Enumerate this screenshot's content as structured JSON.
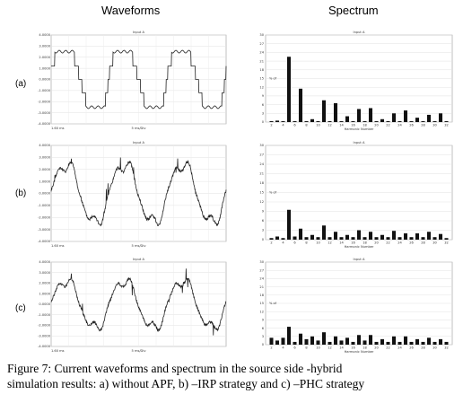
{
  "column_titles": {
    "waveforms": "Waveforms",
    "spectrum": "Spectrum"
  },
  "row_labels": [
    "(a)",
    "(b)",
    "(c)"
  ],
  "caption": {
    "line1": "Figure 7:  Current waveforms and spectrum in the source side -hybrid",
    "line2": "simulation results: a) without APF, b) –IRP strategy and c) –PHC strategy"
  },
  "chart_data": [
    {
      "type": "line",
      "panel": "a-waveform",
      "title": "Input A",
      "xlabel": "5 ms/Div",
      "x_start_label": "1.60 ms",
      "ylim": [
        -4,
        4
      ],
      "yticks": [
        "4.0000",
        "3.0000",
        "2.0000",
        "1.0000",
        "0.0000",
        "-1.0000",
        "-2.0000",
        "-3.0000",
        "-4.0000"
      ],
      "shape": "quasi-square",
      "cycles": 3,
      "amplitude": 2.5,
      "step_level": 1.2
    },
    {
      "type": "bar",
      "panel": "a-spectrum",
      "title": "Input A",
      "xlabel": "Harmonic Number",
      "ylabel": "% of",
      "ylim": [
        0,
        30
      ],
      "yticks": [
        "30",
        "27",
        "24",
        "21",
        "18",
        "15",
        "12",
        "9",
        "6",
        "3",
        "0"
      ],
      "categories": [
        2,
        3,
        4,
        5,
        6,
        7,
        8,
        9,
        10,
        11,
        12,
        13,
        14,
        15,
        16,
        17,
        18,
        19,
        20,
        21,
        22,
        23,
        24,
        25,
        26,
        27,
        28,
        29,
        30,
        31,
        32
      ],
      "xtick_labels": [
        "2",
        "4",
        "6",
        "8",
        "10",
        "12",
        "14",
        "16",
        "18",
        "20",
        "22",
        "24",
        "26",
        "28",
        "30",
        "32"
      ],
      "values": [
        0.3,
        0.5,
        0.3,
        22.5,
        0.3,
        11.5,
        0.3,
        1.0,
        0.3,
        7.5,
        0.3,
        6.5,
        0.3,
        2.0,
        0.3,
        4.5,
        0.3,
        4.8,
        0.3,
        1.0,
        0.3,
        3.0,
        0.3,
        4.0,
        0.3,
        1.5,
        0.3,
        2.5,
        0.3,
        3.0,
        0.3
      ]
    },
    {
      "type": "line",
      "panel": "b-waveform",
      "title": "Input A",
      "xlabel": "5 ms/Div",
      "x_start_label": "1.60 ms",
      "ylim": [
        -4,
        4
      ],
      "yticks": [
        "4.0000",
        "3.0000",
        "2.0000",
        "1.0000",
        "0.0000",
        "-1.0000",
        "-2.0000",
        "-3.0000",
        "-4.0000"
      ],
      "shape": "distorted-sine",
      "cycles": 3,
      "amplitude": 2.7
    },
    {
      "type": "bar",
      "panel": "b-spectrum",
      "title": "Input A",
      "xlabel": "Harmonic Number",
      "ylabel": "% of",
      "ylim": [
        0,
        30
      ],
      "yticks": [
        "30",
        "27",
        "24",
        "21",
        "18",
        "15",
        "12",
        "9",
        "6",
        "3",
        "0"
      ],
      "categories": [
        2,
        3,
        4,
        5,
        6,
        7,
        8,
        9,
        10,
        11,
        12,
        13,
        14,
        15,
        16,
        17,
        18,
        19,
        20,
        21,
        22,
        23,
        24,
        25,
        26,
        27,
        28,
        29,
        30,
        31,
        32
      ],
      "xtick_labels": [
        "2",
        "4",
        "6",
        "8",
        "10",
        "12",
        "14",
        "16",
        "18",
        "20",
        "22",
        "24",
        "26",
        "28",
        "30",
        "32"
      ],
      "values": [
        0.5,
        1.0,
        0.5,
        9.5,
        1.0,
        3.5,
        0.8,
        1.5,
        0.8,
        4.5,
        0.8,
        2.5,
        0.8,
        1.5,
        0.8,
        3.0,
        0.8,
        2.5,
        0.8,
        1.5,
        0.8,
        2.8,
        0.8,
        2.0,
        0.8,
        2.0,
        0.8,
        2.5,
        0.8,
        1.8,
        0.5
      ]
    },
    {
      "type": "line",
      "panel": "c-waveform",
      "title": "Input A",
      "xlabel": "5 ms/Div",
      "x_start_label": "1.60 ms",
      "ylim": [
        -4,
        4
      ],
      "yticks": [
        "4.0000",
        "3.0000",
        "2.0000",
        "1.0000",
        "0.0000",
        "-1.0000",
        "-2.0000",
        "-3.0000",
        "-4.0000"
      ],
      "shape": "distorted-sine",
      "cycles": 3,
      "amplitude": 2.5
    },
    {
      "type": "bar",
      "panel": "c-spectrum",
      "title": "Input A",
      "xlabel": "Harmonic Number",
      "ylabel": "% of",
      "ylim": [
        0,
        30
      ],
      "yticks": [
        "30",
        "27",
        "24",
        "21",
        "18",
        "15",
        "12",
        "9",
        "6",
        "3",
        "0"
      ],
      "categories": [
        2,
        3,
        4,
        5,
        6,
        7,
        8,
        9,
        10,
        11,
        12,
        13,
        14,
        15,
        16,
        17,
        18,
        19,
        20,
        21,
        22,
        23,
        24,
        25,
        26,
        27,
        28,
        29,
        30,
        31,
        32
      ],
      "xtick_labels": [
        "2",
        "4",
        "6",
        "8",
        "10",
        "12",
        "14",
        "16",
        "18",
        "20",
        "22",
        "24",
        "26",
        "28",
        "30",
        "32"
      ],
      "values": [
        2.5,
        1.5,
        2.5,
        6.5,
        1.0,
        4.0,
        2.0,
        3.0,
        1.5,
        4.5,
        1.0,
        3.0,
        1.5,
        2.5,
        1.0,
        3.5,
        1.5,
        3.5,
        1.0,
        2.0,
        1.0,
        3.0,
        1.0,
        3.0,
        1.0,
        2.0,
        1.0,
        2.5,
        1.0,
        2.0,
        1.0
      ]
    }
  ]
}
